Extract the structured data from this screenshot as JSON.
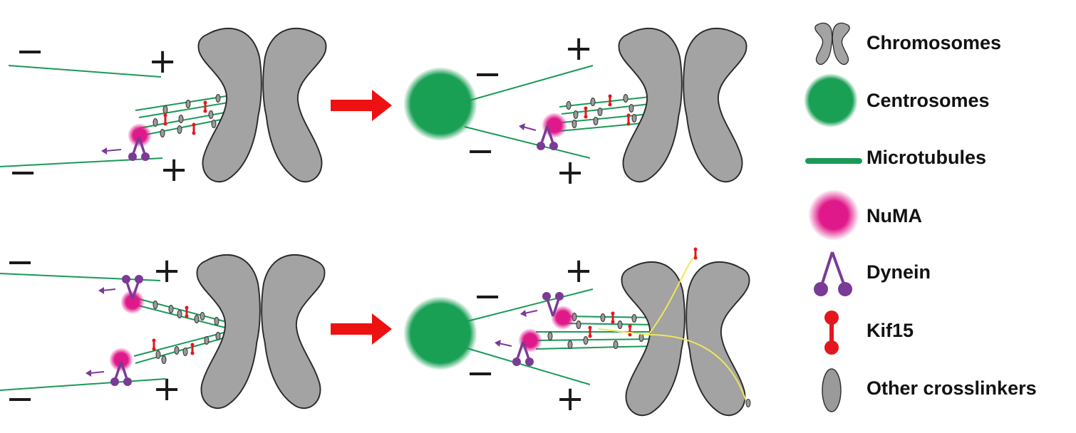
{
  "colors": {
    "chromosome_fill": "#a3a3a3",
    "chromosome_stroke": "#2a2a2a",
    "microtubule": "#1a9a55",
    "centrosome": "#1aa055",
    "numa": "#e0198a",
    "dynein": "#7a3a96",
    "kif15": "#e4161d",
    "crosslinker": "#9a9a9a",
    "arrow": "#ee1111",
    "bridge": "#f0e65a"
  },
  "signs": {
    "minus": "−",
    "plus": "+"
  },
  "legend": {
    "chromosomes": "Chromosomes",
    "centrosomes": "Centrosomes",
    "microtubules": "Microtubules",
    "numa": "NuMA",
    "dynein": "Dynein",
    "kif15": "Kif15",
    "other_crosslinkers": "Other crosslinkers"
  },
  "icons": [
    "chromosome-icon",
    "centrosome-icon",
    "microtubule-icon",
    "numa-icon",
    "dynein-icon",
    "kif15-icon",
    "crosslinker-icon"
  ]
}
